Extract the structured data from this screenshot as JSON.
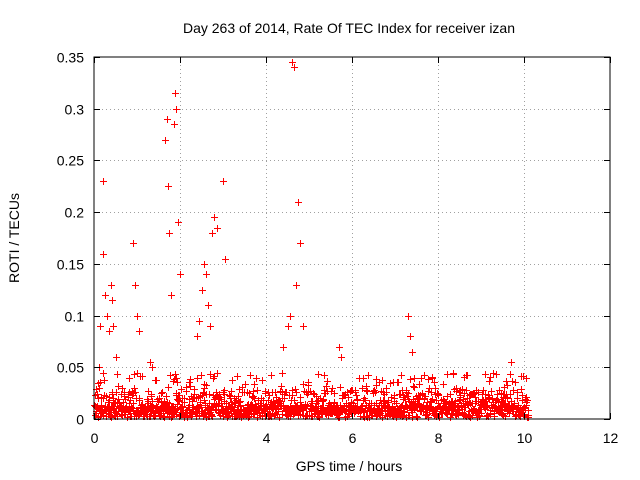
{
  "chart_data": {
    "type": "scatter",
    "title": "Day 263 of 2014, Rate Of TEC Index for receiver izan",
    "xlabel": "GPS time / hours",
    "ylabel": "ROTI / TECUs",
    "xlim": [
      0,
      12
    ],
    "ylim": [
      0,
      0.35
    ],
    "xticks": [
      0,
      2,
      4,
      6,
      8,
      10,
      12
    ],
    "yticks": [
      0,
      0.05,
      0.1,
      0.15,
      0.2,
      0.25,
      0.3,
      0.35
    ],
    "xtick_labels": [
      "0",
      "2",
      "4",
      "6",
      "8",
      "10",
      "12"
    ],
    "ytick_labels": [
      "0",
      "0.05",
      "0.1",
      "0.15",
      "0.2",
      "0.25",
      "0.3",
      "0.35"
    ],
    "grid": true,
    "marker": "+",
    "color": "#ff0000",
    "series": [
      {
        "name": "ROTI",
        "baseline_range_hours": [
          0,
          10.1
        ],
        "notable_points": {
          "x": [
            0.1,
            0.12,
            0.15,
            0.2,
            0.22,
            0.25,
            0.3,
            0.35,
            0.4,
            0.42,
            0.45,
            0.5,
            0.9,
            0.95,
            1.0,
            1.05,
            1.3,
            1.35,
            1.65,
            1.7,
            1.72,
            1.75,
            1.8,
            1.85,
            1.88,
            1.9,
            1.95,
            2.0,
            2.4,
            2.45,
            2.5,
            2.55,
            2.6,
            2.65,
            2.7,
            2.75,
            2.8,
            2.85,
            3.0,
            3.05,
            4.4,
            4.5,
            4.55,
            4.6,
            4.65,
            4.7,
            4.75,
            4.8,
            4.85,
            5.7,
            5.75,
            7.3,
            7.35,
            7.4,
            9.7
          ],
          "y": [
            0.02,
            0.05,
            0.09,
            0.16,
            0.23,
            0.12,
            0.1,
            0.085,
            0.13,
            0.115,
            0.09,
            0.06,
            0.17,
            0.13,
            0.1,
            0.085,
            0.055,
            0.05,
            0.27,
            0.29,
            0.225,
            0.18,
            0.12,
            0.285,
            0.315,
            0.3,
            0.19,
            0.14,
            0.08,
            0.095,
            0.125,
            0.15,
            0.14,
            0.11,
            0.09,
            0.18,
            0.195,
            0.185,
            0.23,
            0.155,
            0.07,
            0.09,
            0.1,
            0.345,
            0.34,
            0.13,
            0.21,
            0.17,
            0.09,
            0.07,
            0.06,
            0.1,
            0.08,
            0.065,
            0.055
          ]
        }
      }
    ]
  }
}
